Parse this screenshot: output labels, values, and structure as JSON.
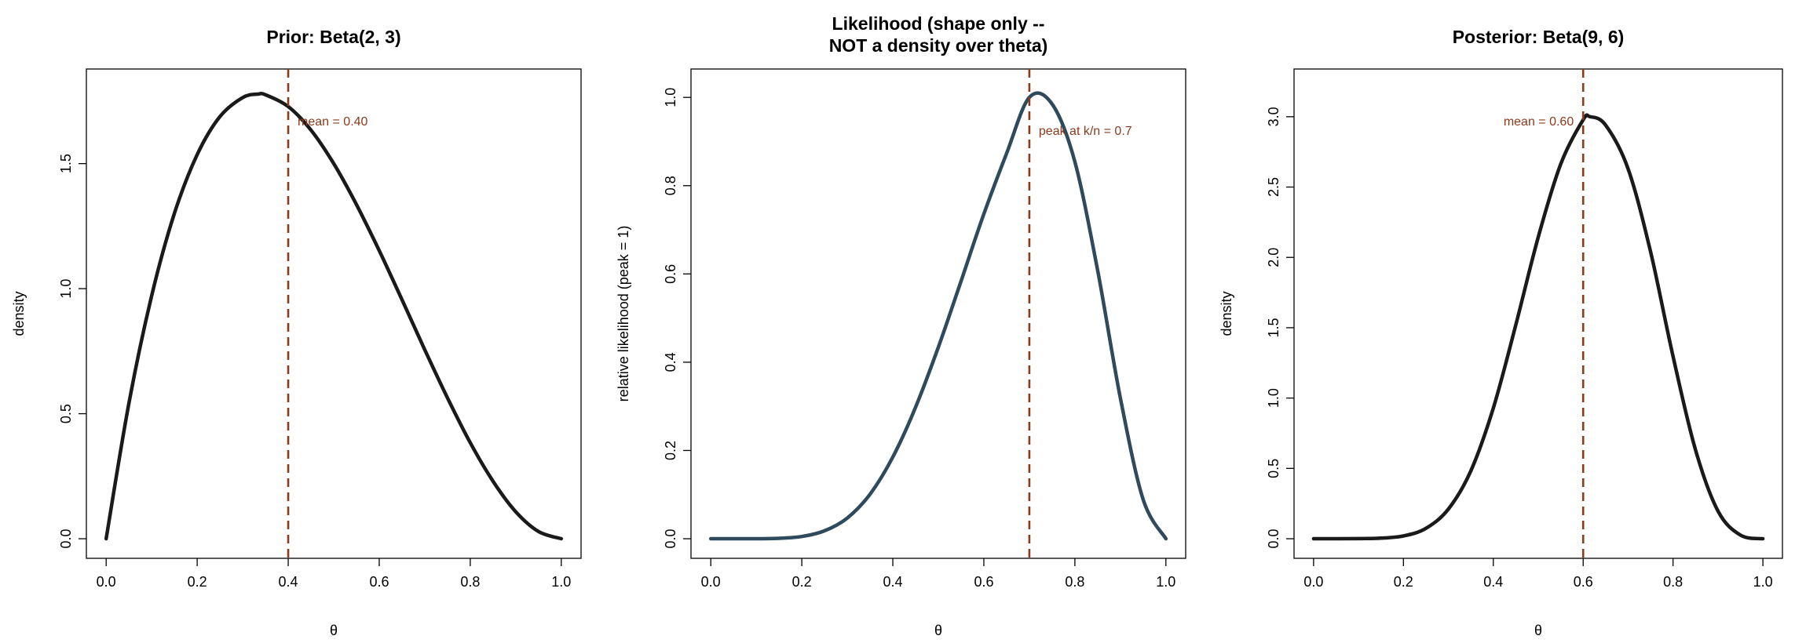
{
  "chart_data": [
    {
      "type": "line",
      "title_lines": [
        "Prior: Beta(2, 3)"
      ],
      "xlabel": "θ",
      "ylabel": "density",
      "xlim": [
        0,
        1
      ],
      "ylim": [
        0,
        1.8
      ],
      "xticks": [
        "0.0",
        "0.2",
        "0.4",
        "0.6",
        "0.8",
        "1.0"
      ],
      "yticks": [
        "0.0",
        "0.5",
        "1.0",
        "1.5"
      ],
      "grid": false,
      "series": [
        {
          "color": "#1a1a1a",
          "x": [
            0,
            0.05,
            0.1,
            0.15,
            0.2,
            0.25,
            0.3,
            0.333,
            0.35,
            0.4,
            0.45,
            0.5,
            0.55,
            0.6,
            0.65,
            0.7,
            0.75,
            0.8,
            0.85,
            0.9,
            0.95,
            1
          ],
          "y": [
            0,
            0.542,
            0.972,
            1.301,
            1.536,
            1.688,
            1.764,
            1.778,
            1.775,
            1.728,
            1.634,
            1.5,
            1.336,
            1.152,
            0.956,
            0.756,
            0.563,
            0.384,
            0.23,
            0.108,
            0.029,
            0
          ]
        }
      ],
      "vline": {
        "x": 0.4,
        "color": "#8b3a1a",
        "label": "mean = 0.40",
        "label_side": "right"
      }
    },
    {
      "type": "line",
      "title_lines": [
        "Likelihood (shape only --",
        "NOT a density over theta)"
      ],
      "xlabel": "θ",
      "ylabel": "relative likelihood (peak = 1)",
      "xlim": [
        0,
        1
      ],
      "ylim": [
        0,
        1.02
      ],
      "xticks": [
        "0.0",
        "0.2",
        "0.4",
        "0.6",
        "0.8",
        "1.0"
      ],
      "yticks": [
        "0.0",
        "0.2",
        "0.4",
        "0.6",
        "0.8",
        "1.0"
      ],
      "grid": false,
      "series": [
        {
          "color": "#2f4a5c",
          "x": [
            0,
            0.1,
            0.15,
            0.2,
            0.25,
            0.3,
            0.35,
            0.4,
            0.45,
            0.5,
            0.55,
            0.6,
            0.65,
            0.7,
            0.75,
            0.8,
            0.85,
            0.9,
            0.95,
            1
          ],
          "y": [
            0,
            0.0,
            0.001,
            0.005,
            0.018,
            0.047,
            0.101,
            0.185,
            0.298,
            0.434,
            0.584,
            0.736,
            0.873,
            1.0,
            0.985,
            0.854,
            0.608,
            0.319,
            0.089,
            0
          ]
        }
      ],
      "vline": {
        "x": 0.7,
        "color": "#8b3a1a",
        "label": "peak at k/n = 0.7",
        "label_side": "right"
      }
    },
    {
      "type": "line",
      "title_lines": [
        "Posterior: Beta(9, 6)"
      ],
      "xlabel": "θ",
      "ylabel": "density",
      "xlim": [
        0,
        1
      ],
      "ylim": [
        0,
        3.2
      ],
      "xticks": [
        "0.0",
        "0.2",
        "0.4",
        "0.6",
        "0.8",
        "1.0"
      ],
      "yticks": [
        "0.0",
        "0.5",
        "1.0",
        "1.5",
        "2.0",
        "2.5",
        "3.0"
      ],
      "grid": false,
      "series": [
        {
          "color": "#1a1a1a",
          "x": [
            0,
            0.1,
            0.15,
            0.2,
            0.25,
            0.3,
            0.35,
            0.4,
            0.45,
            0.5,
            0.55,
            0.6,
            0.615,
            0.65,
            0.7,
            0.75,
            0.8,
            0.85,
            0.9,
            0.95,
            1
          ],
          "y": [
            0,
            0.001,
            0.004,
            0.02,
            0.074,
            0.211,
            0.483,
            0.929,
            1.52,
            2.144,
            2.663,
            2.978,
            3.0,
            2.94,
            2.63,
            2.04,
            1.296,
            0.632,
            0.197,
            0.026,
            0
          ]
        }
      ],
      "vline": {
        "x": 0.6,
        "color": "#8b3a1a",
        "label": "mean = 0.60",
        "label_side": "left"
      }
    }
  ]
}
